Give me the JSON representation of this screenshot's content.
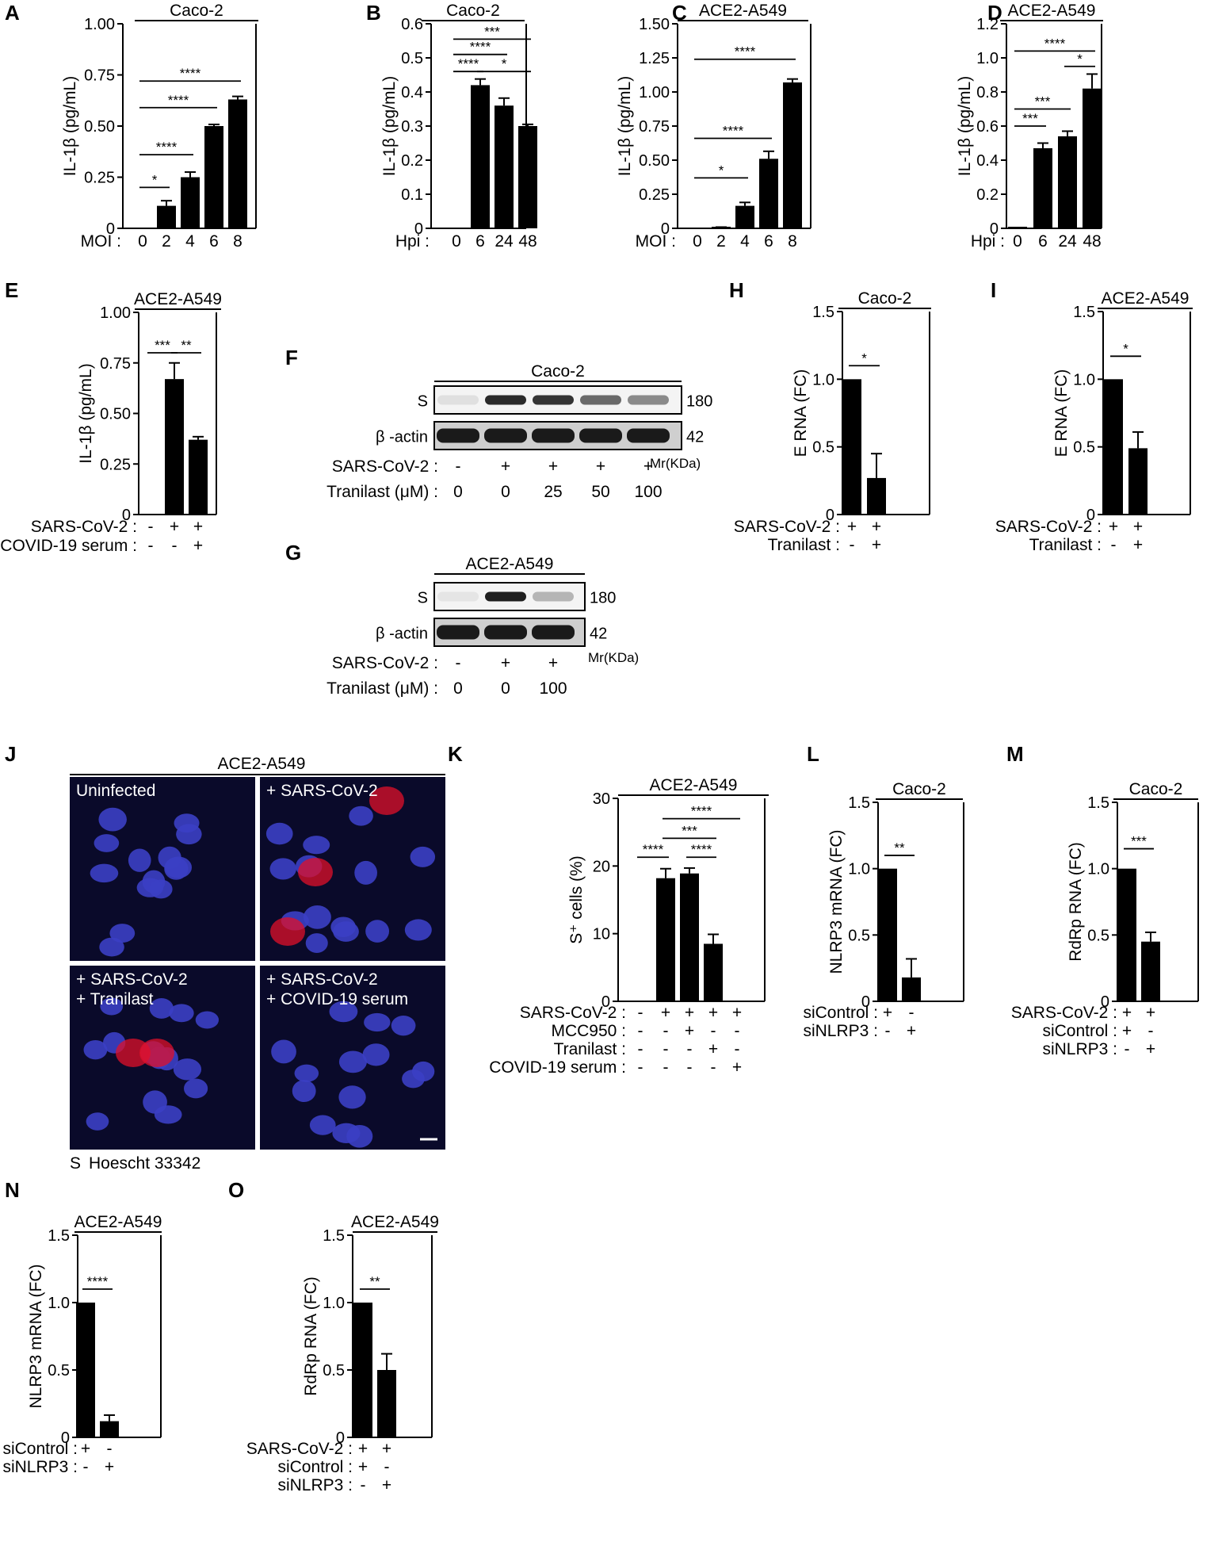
{
  "micro": {
    "panel": "J",
    "title": "ACE2-A549",
    "quadrants": [
      "Uninfected",
      "+ SARS-CoV-2",
      "+ SARS-CoV-2\n+ Tranilast",
      "+ SARS-CoV-2\n+ COVID-19 serum"
    ],
    "legend_s": "S",
    "legend_h": "Hoescht 33342",
    "colors": {
      "s_stain": "#e0102a",
      "hoechst": "#3b3fc4",
      "background": "#0a0a2a"
    }
  },
  "blots": [
    {
      "panel": "F",
      "title": "Caco-2",
      "bands": [
        "S",
        "β -actin"
      ],
      "sizes": [
        "180",
        "42"
      ],
      "mr": "Mr(KDa)",
      "rows": [
        {
          "label": "SARS-CoV-2 :",
          "values": [
            "-",
            "+",
            "+",
            "+",
            "+"
          ]
        },
        {
          "label": "Tranilast (μM) :",
          "values": [
            "0",
            "0",
            "25",
            "50",
            "100"
          ]
        }
      ],
      "s_intensity": [
        0.05,
        0.9,
        0.85,
        0.6,
        0.45
      ]
    },
    {
      "panel": "G",
      "title": "ACE2-A549",
      "bands": [
        "S",
        "β -actin"
      ],
      "sizes": [
        "180",
        "42"
      ],
      "mr": "Mr(KDa)",
      "rows": [
        {
          "label": "SARS-CoV-2 :",
          "values": [
            "-",
            "+",
            "+"
          ]
        },
        {
          "label": "Tranilast (μM) :",
          "values": [
            "0",
            "0",
            "100"
          ]
        }
      ],
      "s_intensity": [
        0.03,
        0.95,
        0.25
      ]
    }
  ],
  "chart_data": [
    {
      "panel": "A",
      "type": "bar",
      "title": "Caco-2",
      "ylabel": "IL-1β (pg/mL)",
      "ylim": [
        0,
        1.0
      ],
      "yticks": [
        "0",
        "0.25",
        "0.50",
        "0.75",
        "1.00"
      ],
      "xlabel_prefix": "MOI :",
      "categories": [
        "0",
        "2",
        "4",
        "6",
        "8"
      ],
      "values": [
        0,
        0.11,
        0.25,
        0.5,
        0.63
      ],
      "errors": [
        0,
        0.025,
        0.025,
        0.008,
        0.015
      ],
      "sig": [
        {
          "from": 1,
          "to": 2,
          "label": "*",
          "y": 0.2
        },
        {
          "from": 1,
          "to": 3,
          "label": "****",
          "y": 0.36
        },
        {
          "from": 1,
          "to": 4,
          "label": "****",
          "y": 0.59
        },
        {
          "from": 1,
          "to": 5,
          "label": "****",
          "y": 0.72
        }
      ]
    },
    {
      "panel": "B",
      "type": "bar",
      "title": "Caco-2",
      "ylabel": "IL-1β (pg/mL)",
      "ylim": [
        0,
        0.6
      ],
      "yticks": [
        "0",
        "0.1",
        "0.2",
        "0.3",
        "0.4",
        "0.5",
        "0.6"
      ],
      "xlabel_prefix": "Hpi :",
      "categories": [
        "0",
        "6",
        "24",
        "48"
      ],
      "values": [
        0,
        0.42,
        0.36,
        0.3
      ],
      "errors": [
        0,
        0.018,
        0.022,
        0.005
      ],
      "sig": [
        {
          "from": 1,
          "to": 2,
          "label": "****",
          "y": 0.46
        },
        {
          "from": 2,
          "to": 4,
          "label": "*",
          "y": 0.46
        },
        {
          "from": 1,
          "to": 3,
          "label": "****",
          "y": 0.51
        },
        {
          "from": 1,
          "to": 4,
          "label": "***",
          "y": 0.555
        }
      ]
    },
    {
      "panel": "C",
      "type": "bar",
      "title": "ACE2-A549",
      "ylabel": "IL-1β (pg/mL)",
      "ylim": [
        0,
        1.5
      ],
      "yticks": [
        "0",
        "0.25",
        "0.50",
        "0.75",
        "1.00",
        "1.25",
        "1.50"
      ],
      "xlabel_prefix": "MOI :",
      "categories": [
        "0",
        "2",
        "4",
        "6",
        "8"
      ],
      "values": [
        0,
        0.005,
        0.165,
        0.51,
        1.07
      ],
      "errors": [
        0,
        0.004,
        0.025,
        0.055,
        0.025
      ],
      "sig": [
        {
          "from": 1,
          "to": 3,
          "label": "*",
          "y": 0.37
        },
        {
          "from": 1,
          "to": 4,
          "label": "****",
          "y": 0.66
        },
        {
          "from": 1,
          "to": 5,
          "label": "****",
          "y": 1.24
        }
      ]
    },
    {
      "panel": "D",
      "type": "bar",
      "title": "ACE2-A549",
      "ylabel": "IL-1β (pg/mL)",
      "ylim": [
        0,
        1.2
      ],
      "yticks": [
        "0",
        "0.2",
        "0.4",
        "0.6",
        "0.8",
        "1.0",
        "1.2"
      ],
      "xlabel_prefix": "Hpi :",
      "categories": [
        "0",
        "6",
        "24",
        "48"
      ],
      "values": [
        0.003,
        0.47,
        0.54,
        0.82
      ],
      "errors": [
        0,
        0.03,
        0.03,
        0.085
      ],
      "sig": [
        {
          "from": 1,
          "to": 2,
          "label": "***",
          "y": 0.6
        },
        {
          "from": 1,
          "to": 3,
          "label": "***",
          "y": 0.7
        },
        {
          "from": 3,
          "to": 4,
          "label": "*",
          "y": 0.95
        },
        {
          "from": 1,
          "to": 4,
          "label": "****",
          "y": 1.04
        }
      ]
    },
    {
      "panel": "E",
      "type": "bar",
      "title": "ACE2-A549",
      "ylabel": "IL-1β (pg/mL)",
      "ylim": [
        0,
        1.0
      ],
      "yticks": [
        "0",
        "0.25",
        "0.50",
        "0.75",
        "1.00"
      ],
      "categories": [
        "a",
        "b",
        "c"
      ],
      "values": [
        0,
        0.67,
        0.37
      ],
      "errors": [
        0,
        0.08,
        0.015
      ],
      "rows": [
        {
          "label": "SARS-CoV-2 :",
          "values": [
            "-",
            "+",
            "+"
          ]
        },
        {
          "label": "COVID-19 serum :",
          "values": [
            "-",
            "-",
            "+"
          ]
        }
      ],
      "sig": [
        {
          "from": 1,
          "to": 2,
          "label": "***",
          "y": 0.8
        },
        {
          "from": 2,
          "to": 3,
          "label": "**",
          "y": 0.8
        }
      ]
    },
    {
      "panel": "H",
      "type": "bar",
      "title": "Caco-2",
      "ylabel": "E RNA (FC)",
      "ylim": [
        0,
        1.5
      ],
      "yticks": [
        "0",
        "0.5",
        "1.0",
        "1.5"
      ],
      "categories": [
        "a",
        "b"
      ],
      "values": [
        1.0,
        0.27
      ],
      "errors": [
        0,
        0.18
      ],
      "rows": [
        {
          "label": "SARS-CoV-2 :",
          "values": [
            "+",
            "+"
          ]
        },
        {
          "label": "Tranilast :",
          "values": [
            "-",
            "+"
          ]
        }
      ],
      "sig": [
        {
          "from": 1,
          "to": 2,
          "label": "*",
          "y": 1.1
        }
      ]
    },
    {
      "panel": "I",
      "type": "bar",
      "title": "ACE2-A549",
      "ylabel": "E RNA (FC)",
      "ylim": [
        0,
        1.5
      ],
      "yticks": [
        "0",
        "0.5",
        "1.0",
        "1.5"
      ],
      "categories": [
        "a",
        "b"
      ],
      "values": [
        1.0,
        0.49
      ],
      "errors": [
        0,
        0.12
      ],
      "rows": [
        {
          "label": "SARS-CoV-2 :",
          "values": [
            "+",
            "+"
          ]
        },
        {
          "label": "Tranilast :",
          "values": [
            "-",
            "+"
          ]
        }
      ],
      "sig": [
        {
          "from": 1,
          "to": 2,
          "label": "*",
          "y": 1.17
        }
      ]
    },
    {
      "panel": "K",
      "type": "bar",
      "title": "ACE2-A549",
      "ylabel": "S⁺ cells (%)",
      "ylim": [
        0,
        30
      ],
      "yticks": [
        "0",
        "10",
        "20",
        "30"
      ],
      "categories": [
        "a",
        "b",
        "c",
        "d",
        "e"
      ],
      "values": [
        0,
        18.2,
        18.9,
        8.5,
        0
      ],
      "errors": [
        0,
        1.4,
        0.8,
        1.4,
        0
      ],
      "rows": [
        {
          "label": "SARS-CoV-2 :",
          "values": [
            "-",
            "+",
            "+",
            "+",
            "+"
          ]
        },
        {
          "label": "MCC950 :",
          "values": [
            "-",
            "-",
            "+",
            "-",
            "-"
          ]
        },
        {
          "label": "Tranilast :",
          "values": [
            "-",
            "-",
            "-",
            "+",
            "-"
          ]
        },
        {
          "label": "COVID-19 serum :",
          "values": [
            "-",
            "-",
            "-",
            "-",
            "+"
          ]
        }
      ],
      "sig": [
        {
          "from": 1,
          "to": 2,
          "label": "****",
          "y": 21.3
        },
        {
          "from": 3,
          "to": 4,
          "label": "****",
          "y": 21.3
        },
        {
          "from": 2,
          "to": 4,
          "label": "***",
          "y": 24.1
        },
        {
          "from": 2,
          "to": 5,
          "label": "****",
          "y": 27.0
        }
      ]
    },
    {
      "panel": "L",
      "type": "bar",
      "title": "Caco-2",
      "ylabel": "NLRP3 mRNA (FC)",
      "ylim": [
        0,
        1.5
      ],
      "yticks": [
        "0",
        "0.5",
        "1.0",
        "1.5"
      ],
      "categories": [
        "a",
        "b"
      ],
      "values": [
        1.0,
        0.18
      ],
      "errors": [
        0,
        0.14
      ],
      "rows": [
        {
          "label": "siControl :",
          "values": [
            "+",
            "-"
          ]
        },
        {
          "label": "siNLRP3 :",
          "values": [
            "-",
            "+"
          ]
        }
      ],
      "sig": [
        {
          "from": 1,
          "to": 2,
          "label": "**",
          "y": 1.1
        }
      ]
    },
    {
      "panel": "M",
      "type": "bar",
      "title": "Caco-2",
      "ylabel": "RdRp RNA (FC)",
      "ylim": [
        0,
        1.5
      ],
      "yticks": [
        "0",
        "0.5",
        "1.0",
        "1.5"
      ],
      "categories": [
        "a",
        "b"
      ],
      "values": [
        1.0,
        0.45
      ],
      "errors": [
        0,
        0.07
      ],
      "rows": [
        {
          "label": "SARS-CoV-2 :",
          "values": [
            "+",
            "+"
          ]
        },
        {
          "label": "siControl :",
          "values": [
            "+",
            "-"
          ]
        },
        {
          "label": "siNLRP3 :",
          "values": [
            "-",
            "+"
          ]
        }
      ],
      "sig": [
        {
          "from": 1,
          "to": 2,
          "label": "***",
          "y": 1.15
        }
      ]
    },
    {
      "panel": "N",
      "type": "bar",
      "title": "ACE2-A549",
      "ylabel": "NLRP3 mRNA (FC)",
      "ylim": [
        0,
        1.5
      ],
      "yticks": [
        "0",
        "0.5",
        "1.0",
        "1.5"
      ],
      "categories": [
        "a",
        "b"
      ],
      "values": [
        1.0,
        0.12
      ],
      "errors": [
        0,
        0.045
      ],
      "rows": [
        {
          "label": "siControl :",
          "values": [
            "+",
            "-"
          ]
        },
        {
          "label": "siNLRP3 :",
          "values": [
            "-",
            "+"
          ]
        }
      ],
      "sig": [
        {
          "from": 1,
          "to": 2,
          "label": "****",
          "y": 1.1
        }
      ]
    },
    {
      "panel": "O",
      "type": "bar",
      "title": "ACE2-A549",
      "ylabel": "RdRp RNA (FC)",
      "ylim": [
        0,
        1.5
      ],
      "yticks": [
        "0",
        "0.5",
        "1.0",
        "1.5"
      ],
      "categories": [
        "a",
        "b"
      ],
      "values": [
        1.0,
        0.5
      ],
      "errors": [
        0,
        0.12
      ],
      "rows": [
        {
          "label": "SARS-CoV-2 :",
          "values": [
            "+",
            "+"
          ]
        },
        {
          "label": "siControl :",
          "values": [
            "+",
            "-"
          ]
        },
        {
          "label": "siNLRP3 :",
          "values": [
            "-",
            "+"
          ]
        }
      ],
      "sig": [
        {
          "from": 1,
          "to": 2,
          "label": "**",
          "y": 1.1
        }
      ]
    }
  ]
}
